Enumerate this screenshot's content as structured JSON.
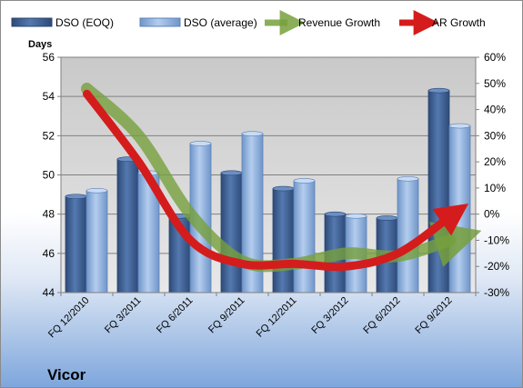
{
  "chart_data": {
    "type": "bar",
    "company": "Vicor",
    "categories": [
      "FQ 12/2010",
      "FQ 3/2011",
      "FQ 6/2011",
      "FQ 9/2011",
      "FQ 12/2011",
      "FQ 3/2012",
      "FQ 6/2012",
      "FQ 9/2012"
    ],
    "series": [
      {
        "name": "DSO (EOQ)",
        "values": [
          48.9,
          50.8,
          47.9,
          50.1,
          49.3,
          48.0,
          47.8,
          54.3
        ],
        "color": "#3d5f92"
      },
      {
        "name": "DSO (average)",
        "values": [
          49.2,
          50.1,
          51.6,
          52.1,
          49.7,
          47.9,
          49.8,
          52.5
        ],
        "color": "#90b4e0"
      }
    ],
    "line_series": [
      {
        "name": "Revenue Growth",
        "values": [
          48,
          30,
          0,
          -18,
          -19,
          -15,
          -16,
          -10
        ],
        "color": "#77a03c"
      },
      {
        "name": "AR Growth",
        "values": [
          46,
          20,
          -10,
          -19,
          -19,
          -20,
          -15,
          -1
        ],
        "color": "#d02020"
      }
    ],
    "ylabel": "Days",
    "ylim": [
      44,
      56
    ],
    "yticks": [
      "44",
      "46",
      "48",
      "50",
      "52",
      "54",
      "56"
    ],
    "y2lim": [
      -30,
      60
    ],
    "y2ticks": [
      "-30%",
      "-20%",
      "-10%",
      "0%",
      "10%",
      "20%",
      "30%",
      "40%",
      "50%",
      "60%"
    ],
    "grid": true,
    "legend_position": "top"
  }
}
